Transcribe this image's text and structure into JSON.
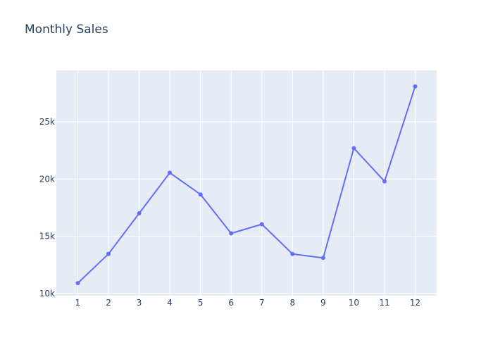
{
  "chart_data": {
    "type": "line",
    "title": "Monthly Sales",
    "xlabel": "",
    "ylabel": "",
    "x": [
      1,
      2,
      3,
      4,
      5,
      6,
      7,
      8,
      9,
      10,
      11,
      12
    ],
    "series": [
      {
        "values": [
          10900,
          13450,
          17000,
          20550,
          18650,
          15250,
          16050,
          13450,
          13100,
          22700,
          19800,
          28100
        ]
      }
    ],
    "xlim": [
      0.3,
      12.7
    ],
    "ylim": [
      9800,
      29500
    ],
    "x_ticks": [
      "1",
      "2",
      "3",
      "4",
      "5",
      "6",
      "7",
      "8",
      "9",
      "10",
      "11",
      "12"
    ],
    "y_ticks": [
      {
        "value": 10000,
        "label": "10k"
      },
      {
        "value": 15000,
        "label": "15k"
      },
      {
        "value": 20000,
        "label": "20k"
      },
      {
        "value": 25000,
        "label": "25k"
      }
    ],
    "grid": true,
    "colors": {
      "line": "#636efa",
      "plot_bg": "#e5ecf6",
      "grid": "#ffffff",
      "text": "#2a3f5f"
    }
  }
}
